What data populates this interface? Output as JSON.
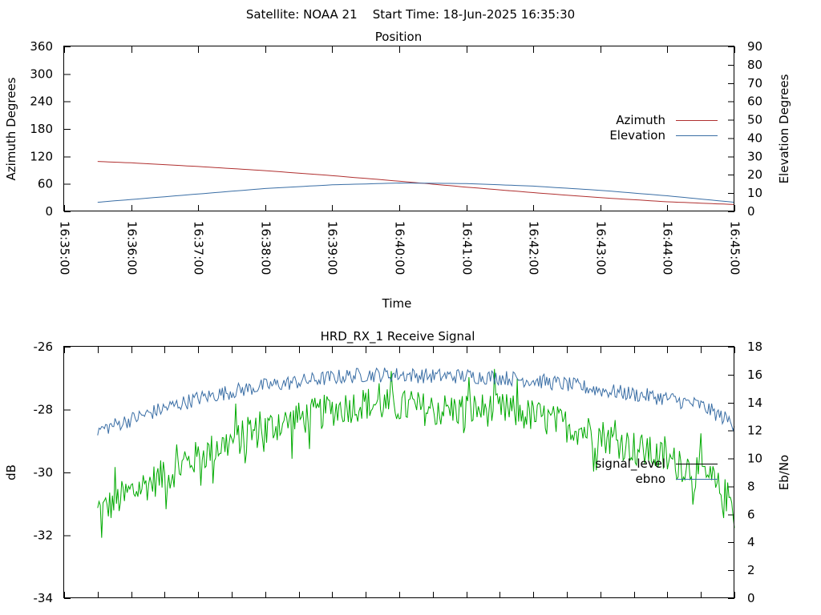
{
  "header": {
    "title": "Satellite: NOAA 21    Start Time: 18-Jun-2025 16:35:30"
  },
  "colors": {
    "azimuth": "#b03030",
    "elevation": "#3a6ea5",
    "signal_level": "#00aa00",
    "ebno": "#3a6ea5"
  },
  "chart_data": [
    {
      "type": "line",
      "title": "Position",
      "xlabel": "Time",
      "ylabel": "Azimuth Degrees",
      "y2label": "Elevation Degrees",
      "ylim": [
        0,
        360
      ],
      "y2lim": [
        0,
        90
      ],
      "yticks": [
        "0",
        "60",
        "120",
        "180",
        "240",
        "300",
        "360"
      ],
      "y2ticks": [
        "0",
        "10",
        "20",
        "30",
        "40",
        "50",
        "60",
        "70",
        "80",
        "90"
      ],
      "xrange": [
        "16:35:00",
        "16:45:00"
      ],
      "xticks": [
        "16:35:00",
        "16:36:00",
        "16:37:00",
        "16:38:00",
        "16:39:00",
        "16:40:00",
        "16:41:00",
        "16:42:00",
        "16:43:00",
        "16:44:00",
        "16:45:00"
      ],
      "legend_position": "right",
      "series": [
        {
          "name": "Azimuth",
          "axis": "left",
          "x": [
            "16:35:30",
            "16:36:00",
            "16:37:00",
            "16:38:00",
            "16:39:00",
            "16:40:00",
            "16:41:00",
            "16:42:00",
            "16:43:00",
            "16:44:00",
            "16:45:00"
          ],
          "values": [
            109,
            106,
            98,
            89,
            78,
            66,
            53,
            41,
            30,
            21,
            15
          ]
        },
        {
          "name": "Elevation",
          "axis": "right",
          "x": [
            "16:35:30",
            "16:36:00",
            "16:37:00",
            "16:38:00",
            "16:39:00",
            "16:40:00",
            "16:41:00",
            "16:42:00",
            "16:43:00",
            "16:44:00",
            "16:45:00"
          ],
          "values": [
            5,
            6.5,
            9.5,
            12.5,
            14.5,
            15.5,
            15.2,
            13.8,
            11.5,
            8.5,
            5
          ]
        }
      ]
    },
    {
      "type": "line",
      "title": "HRD_RX_1 Receive Signal",
      "ylabel": "dB",
      "y2label": "Eb/No",
      "ylim": [
        -34,
        -26
      ],
      "y2lim": [
        0,
        18
      ],
      "yticks": [
        "-34",
        "-32",
        "-30",
        "-28",
        "-26"
      ],
      "y2ticks": [
        "0",
        "2",
        "4",
        "6",
        "8",
        "10",
        "12",
        "14",
        "16",
        "18"
      ],
      "xrange": [
        "16:35:00",
        "16:45:00"
      ],
      "legend_position": "right",
      "series": [
        {
          "name": "signal_level",
          "axis": "left",
          "x": [
            "16:35:30",
            "16:36:00",
            "16:36:30",
            "16:37:00",
            "16:37:30",
            "16:38:00",
            "16:38:30",
            "16:39:00",
            "16:39:30",
            "16:40:00",
            "16:40:30",
            "16:41:00",
            "16:41:30",
            "16:42:00",
            "16:42:30",
            "16:43:00",
            "16:43:30",
            "16:44:00",
            "16:44:30",
            "16:45:00"
          ],
          "values": [
            -31.3,
            -30.6,
            -30.1,
            -29.5,
            -29.0,
            -28.6,
            -28.3,
            -28.0,
            -27.8,
            -27.9,
            -28.0,
            -28.0,
            -28.0,
            -28.2,
            -28.5,
            -28.8,
            -29.2,
            -29.6,
            -30.0,
            -31.0
          ]
        },
        {
          "name": "ebno",
          "axis": "right",
          "x": [
            "16:35:30",
            "16:36:00",
            "16:36:30",
            "16:37:00",
            "16:37:30",
            "16:38:00",
            "16:38:30",
            "16:39:00",
            "16:39:30",
            "16:40:00",
            "16:40:30",
            "16:41:00",
            "16:41:30",
            "16:42:00",
            "16:42:30",
            "16:43:00",
            "16:43:30",
            "16:44:00",
            "16:44:30",
            "16:45:00"
          ],
          "values": [
            12.0,
            12.8,
            13.6,
            14.3,
            14.8,
            15.2,
            15.5,
            15.8,
            16.0,
            16.0,
            15.9,
            15.9,
            15.8,
            15.6,
            15.3,
            14.9,
            14.6,
            14.3,
            13.8,
            12.5
          ]
        }
      ]
    }
  ]
}
